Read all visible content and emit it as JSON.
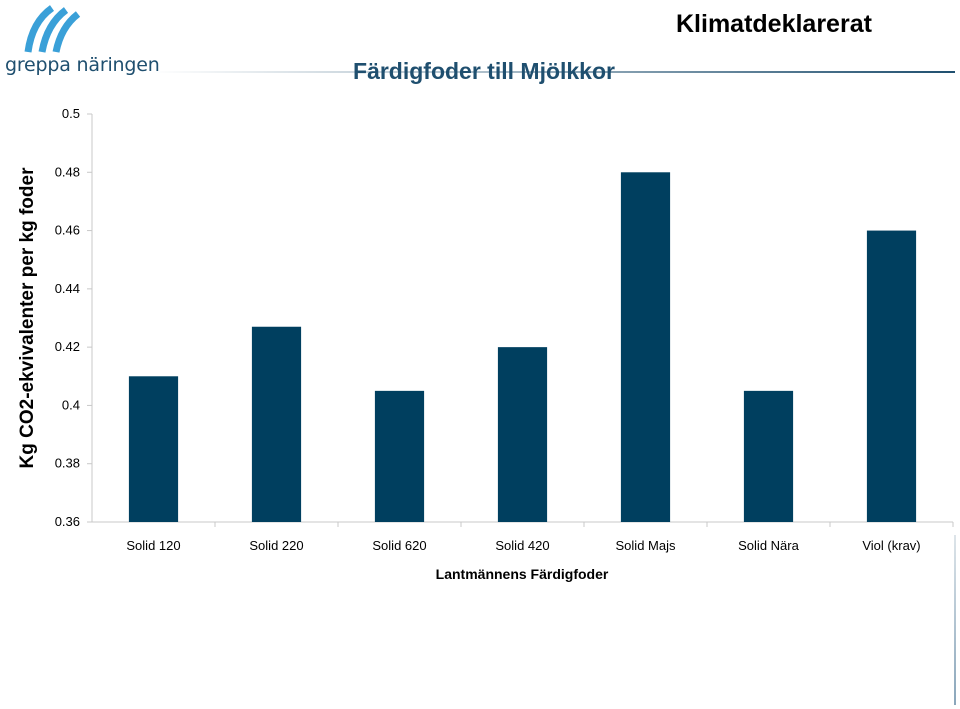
{
  "brand": {
    "logo_text": "greppa näringen",
    "color": "#1f4f6f"
  },
  "header": {
    "title": "Klimatdeklarerat"
  },
  "chart_data": {
    "type": "bar",
    "title": "Färdigfoder till Mjölkkor",
    "xlabel": "Lantmännens Färdigfoder",
    "ylabel": "Kg CO2-ekvivalenter per  kg foder",
    "categories": [
      "Solid 120",
      "Solid 220",
      "Solid 620",
      "Solid 420",
      "Solid Majs",
      "Solid Nära",
      "Viol (krav)"
    ],
    "values": [
      0.41,
      0.427,
      0.405,
      0.42,
      0.48,
      0.405,
      0.46
    ],
    "ylim": [
      0.36,
      0.5
    ],
    "yticks": [
      "0.36",
      "0.38",
      "0.4",
      "0.42",
      "0.44",
      "0.46",
      "0.48",
      "0.5"
    ],
    "grid": false,
    "legend": "none",
    "bar_color": "#003f5f"
  }
}
